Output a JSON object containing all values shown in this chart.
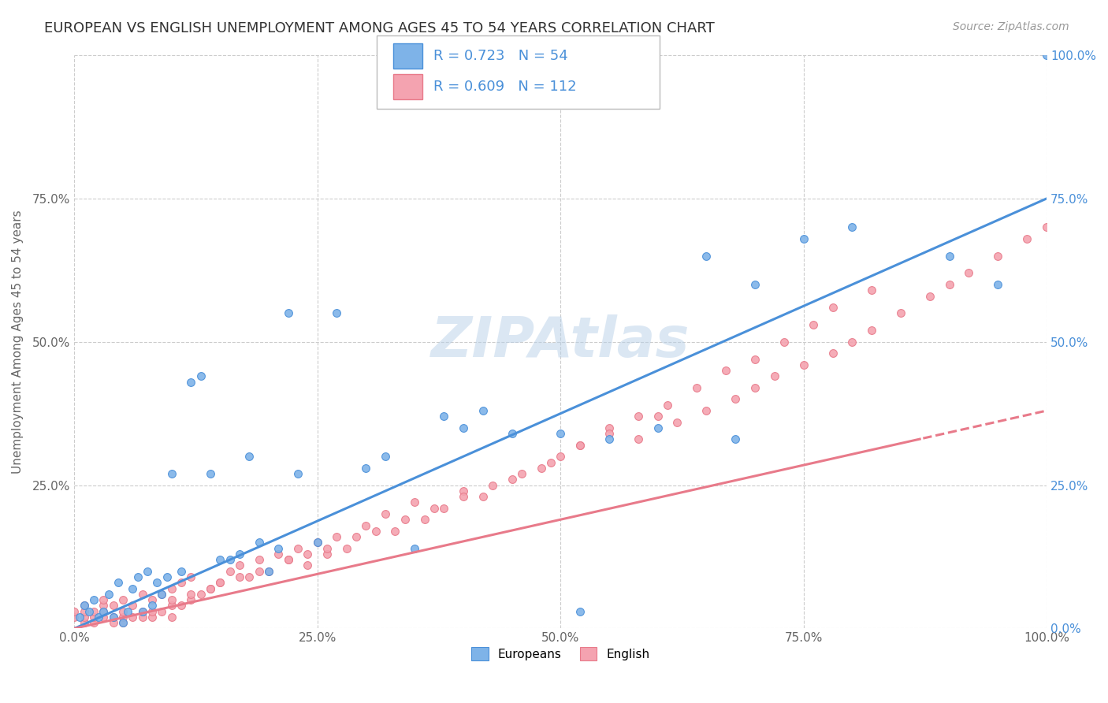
{
  "title": "EUROPEAN VS ENGLISH UNEMPLOYMENT AMONG AGES 45 TO 54 YEARS CORRELATION CHART",
  "source": "Source: ZipAtlas.com",
  "ylabel": "Unemployment Among Ages 45 to 54 years",
  "xlim": [
    0,
    1.0
  ],
  "ylim": [
    0,
    1.0
  ],
  "background_color": "#ffffff",
  "grid_color": "#cccccc",
  "watermark": "ZIPAtlas",
  "europeans_color": "#7eb3e8",
  "english_color": "#f4a3b0",
  "line_blue": "#4a90d9",
  "line_pink": "#e87a8a",
  "legend_R1": "0.723",
  "legend_N1": "54",
  "legend_R2": "0.609",
  "legend_N2": "112",
  "eu_line_slope": 0.75,
  "eu_line_intercept": 0.0,
  "en_line_slope": 0.38,
  "en_line_intercept": 0.0,
  "en_line_dash_start": 0.87,
  "europeans_x": [
    0.005,
    0.01,
    0.015,
    0.02,
    0.025,
    0.03,
    0.035,
    0.04,
    0.045,
    0.05,
    0.055,
    0.06,
    0.065,
    0.07,
    0.075,
    0.08,
    0.085,
    0.09,
    0.095,
    0.1,
    0.11,
    0.12,
    0.13,
    0.14,
    0.15,
    0.16,
    0.17,
    0.18,
    0.19,
    0.2,
    0.21,
    0.22,
    0.23,
    0.25,
    0.27,
    0.3,
    0.32,
    0.35,
    0.38,
    0.4,
    0.42,
    0.45,
    0.5,
    0.52,
    0.55,
    0.6,
    0.65,
    0.68,
    0.7,
    0.75,
    0.8,
    0.9,
    0.95,
    1.0
  ],
  "europeans_y": [
    0.02,
    0.04,
    0.03,
    0.05,
    0.02,
    0.03,
    0.06,
    0.02,
    0.08,
    0.01,
    0.03,
    0.07,
    0.09,
    0.03,
    0.1,
    0.04,
    0.08,
    0.06,
    0.09,
    0.27,
    0.1,
    0.43,
    0.44,
    0.27,
    0.12,
    0.12,
    0.13,
    0.3,
    0.15,
    0.1,
    0.14,
    0.55,
    0.27,
    0.15,
    0.55,
    0.28,
    0.3,
    0.14,
    0.37,
    0.35,
    0.38,
    0.34,
    0.34,
    0.03,
    0.33,
    0.35,
    0.65,
    0.33,
    0.6,
    0.68,
    0.7,
    0.65,
    0.6,
    1.0
  ],
  "english_x": [
    0.0,
    0.0,
    0.01,
    0.01,
    0.01,
    0.01,
    0.02,
    0.02,
    0.02,
    0.03,
    0.03,
    0.03,
    0.03,
    0.04,
    0.04,
    0.04,
    0.05,
    0.05,
    0.05,
    0.05,
    0.06,
    0.06,
    0.07,
    0.07,
    0.07,
    0.08,
    0.08,
    0.08,
    0.09,
    0.09,
    0.1,
    0.1,
    0.1,
    0.11,
    0.11,
    0.12,
    0.12,
    0.13,
    0.14,
    0.15,
    0.16,
    0.17,
    0.18,
    0.19,
    0.2,
    0.21,
    0.22,
    0.23,
    0.24,
    0.25,
    0.26,
    0.27,
    0.28,
    0.3,
    0.32,
    0.33,
    0.35,
    0.36,
    0.38,
    0.4,
    0.42,
    0.45,
    0.48,
    0.5,
    0.52,
    0.55,
    0.58,
    0.6,
    0.62,
    0.65,
    0.68,
    0.7,
    0.72,
    0.75,
    0.78,
    0.8,
    0.82,
    0.85,
    0.88,
    0.9,
    0.92,
    0.95,
    0.98,
    1.0,
    0.1,
    0.12,
    0.14,
    0.15,
    0.17,
    0.19,
    0.22,
    0.24,
    0.26,
    0.29,
    0.31,
    0.34,
    0.37,
    0.4,
    0.43,
    0.46,
    0.49,
    0.52,
    0.55,
    0.58,
    0.61,
    0.64,
    0.67,
    0.7,
    0.73,
    0.76,
    0.78,
    0.82
  ],
  "english_y": [
    0.02,
    0.03,
    0.01,
    0.02,
    0.03,
    0.04,
    0.01,
    0.02,
    0.03,
    0.02,
    0.03,
    0.04,
    0.05,
    0.01,
    0.02,
    0.04,
    0.01,
    0.02,
    0.03,
    0.05,
    0.02,
    0.04,
    0.02,
    0.03,
    0.06,
    0.02,
    0.03,
    0.05,
    0.03,
    0.06,
    0.02,
    0.04,
    0.07,
    0.04,
    0.08,
    0.05,
    0.09,
    0.06,
    0.07,
    0.08,
    0.1,
    0.11,
    0.09,
    0.12,
    0.1,
    0.13,
    0.12,
    0.14,
    0.11,
    0.15,
    0.13,
    0.16,
    0.14,
    0.18,
    0.2,
    0.17,
    0.22,
    0.19,
    0.21,
    0.24,
    0.23,
    0.26,
    0.28,
    0.3,
    0.32,
    0.35,
    0.33,
    0.37,
    0.36,
    0.38,
    0.4,
    0.42,
    0.44,
    0.46,
    0.48,
    0.5,
    0.52,
    0.55,
    0.58,
    0.6,
    0.62,
    0.65,
    0.68,
    0.7,
    0.05,
    0.06,
    0.07,
    0.08,
    0.09,
    0.1,
    0.12,
    0.13,
    0.14,
    0.16,
    0.17,
    0.19,
    0.21,
    0.23,
    0.25,
    0.27,
    0.29,
    0.32,
    0.34,
    0.37,
    0.39,
    0.42,
    0.45,
    0.47,
    0.5,
    0.53,
    0.56,
    0.59
  ]
}
